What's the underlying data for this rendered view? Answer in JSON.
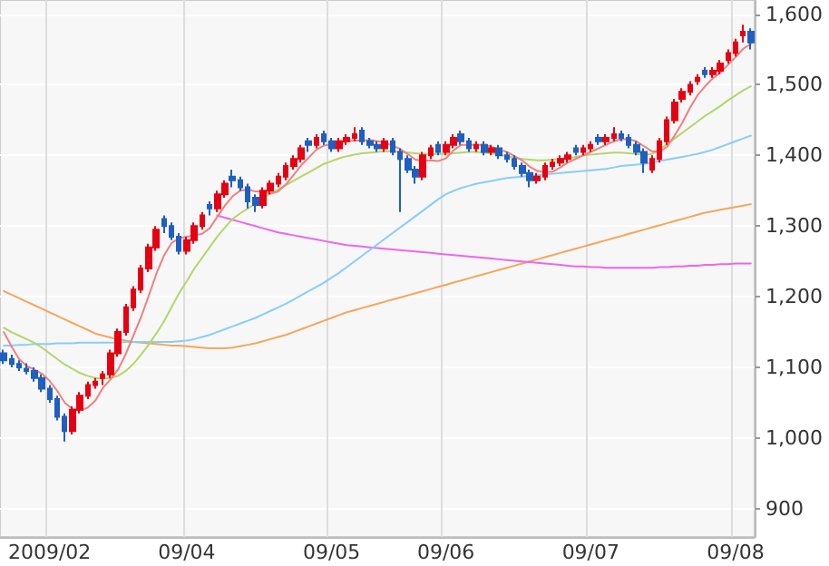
{
  "chart_data": {
    "type": "candlestick",
    "grid": true,
    "marker": "none",
    "categories": [
      null,
      null,
      null,
      null,
      null,
      null,
      "2009/02",
      null,
      null,
      null,
      null,
      null,
      null,
      null,
      null,
      null,
      null,
      null,
      null,
      null,
      null,
      null,
      null,
      null,
      "09/04",
      null,
      null,
      null,
      null,
      null,
      null,
      null,
      null,
      null,
      null,
      null,
      null,
      null,
      null,
      null,
      null,
      null,
      null,
      "09/05",
      null,
      null,
      null,
      null,
      null,
      null,
      null,
      null,
      null,
      null,
      null,
      null,
      null,
      null,
      "09/06",
      null,
      null,
      null,
      null,
      null,
      null,
      null,
      null,
      null,
      null,
      null,
      null,
      null,
      null,
      null,
      null,
      null,
      null,
      "09/07",
      null,
      null,
      null,
      null,
      null,
      null,
      null,
      null,
      null,
      null,
      null,
      null,
      null,
      null,
      null,
      null,
      null,
      null,
      "09/08",
      null,
      null
    ],
    "ylim": [
      860,
      1620
    ],
    "yticks": [
      {
        "value": 900,
        "label": "900"
      },
      {
        "value": 1000,
        "label": "1,000"
      },
      {
        "value": 1100,
        "label": "1,100"
      },
      {
        "value": 1200,
        "label": "1,200"
      },
      {
        "value": 1300,
        "label": "1,300"
      },
      {
        "value": 1400,
        "label": "1,400"
      },
      {
        "value": 1500,
        "label": "1,500"
      },
      {
        "value": 1600,
        "label": "1,600"
      }
    ],
    "series": [
      {
        "type": "line",
        "color": "#f5a65b",
        "values": [
          1208,
          1203,
          1198,
          1193,
          1188,
          1183,
          1178,
          1173,
          1168,
          1163,
          1158,
          1153,
          1148,
          1145,
          1142,
          1140,
          1138,
          1136,
          1135,
          1134,
          1133,
          1132,
          1131,
          1131,
          1130,
          1129,
          1128,
          1127,
          1127,
          1127,
          1128,
          1130,
          1132,
          1134,
          1137,
          1140,
          1143,
          1146,
          1150,
          1154,
          1158,
          1162,
          1166,
          1170,
          1174,
          1178,
          1181,
          1184,
          1187,
          1190,
          1193,
          1196,
          1199,
          1202,
          1205,
          1208,
          1211,
          1214,
          1217,
          1220,
          1223,
          1226,
          1229,
          1232,
          1235,
          1238,
          1241,
          1244,
          1247,
          1250,
          1253,
          1256,
          1259,
          1262,
          1265,
          1268,
          1271,
          1274,
          1277,
          1280,
          1283,
          1286,
          1289,
          1292,
          1295,
          1298,
          1301,
          1304,
          1307,
          1310,
          1313,
          1316,
          1319,
          1321,
          1323,
          1325,
          1327,
          1329,
          1331
        ]
      },
      {
        "type": "line",
        "color": "#ee66ee",
        "values": [
          null,
          null,
          null,
          null,
          null,
          null,
          null,
          null,
          null,
          null,
          null,
          null,
          null,
          null,
          null,
          null,
          null,
          null,
          null,
          null,
          null,
          null,
          null,
          null,
          null,
          null,
          null,
          null,
          1315,
          1312,
          1309,
          1306,
          1303,
          1300,
          1297,
          1294,
          1291,
          1289,
          1287,
          1285,
          1283,
          1281,
          1279,
          1277,
          1275,
          1273,
          1272,
          1271,
          1270,
          1269,
          1268,
          1267,
          1266,
          1265,
          1264,
          1263,
          1262,
          1261,
          1260,
          1259,
          1258,
          1257,
          1256,
          1255,
          1254,
          1253,
          1252,
          1251,
          1250,
          1249,
          1248,
          1247,
          1246,
          1245,
          1244,
          1243,
          1243,
          1242,
          1242,
          1241,
          1241,
          1241,
          1241,
          1241,
          1241,
          1241,
          1242,
          1242,
          1243,
          1243,
          1244,
          1244,
          1245,
          1245,
          1246,
          1246,
          1247,
          1247,
          1247
        ]
      },
      {
        "type": "line",
        "color": "#87cefa",
        "values": [
          1131,
          1131,
          1132,
          1132,
          1133,
          1133,
          1133,
          1134,
          1134,
          1134,
          1135,
          1135,
          1135,
          1135,
          1135,
          1135,
          1136,
          1136,
          1136,
          1136,
          1136,
          1136,
          1136,
          1137,
          1138,
          1140,
          1143,
          1146,
          1150,
          1154,
          1158,
          1162,
          1166,
          1170,
          1175,
          1180,
          1185,
          1190,
          1196,
          1202,
          1208,
          1214,
          1220,
          1227,
          1234,
          1242,
          1250,
          1258,
          1266,
          1274,
          1282,
          1290,
          1298,
          1306,
          1314,
          1322,
          1330,
          1338,
          1345,
          1350,
          1354,
          1357,
          1360,
          1362,
          1364,
          1366,
          1368,
          1369,
          1370,
          1371,
          1372,
          1373,
          1374,
          1375,
          1376,
          1377,
          1378,
          1379,
          1380,
          1381,
          1383,
          1385,
          1386,
          1387,
          1388,
          1390,
          1392,
          1394,
          1396,
          1398,
          1400,
          1402,
          1405,
          1408,
          1412,
          1416,
          1420,
          1424,
          1428
        ]
      },
      {
        "type": "line",
        "color": "#b5d56a",
        "values": [
          1156,
          1150,
          1145,
          1140,
          1135,
          1128,
          1120,
          1112,
          1104,
          1098,
          1092,
          1088,
          1085,
          1084,
          1085,
          1088,
          1095,
          1105,
          1118,
          1132,
          1148,
          1165,
          1185,
          1205,
          1222,
          1240,
          1255,
          1270,
          1285,
          1298,
          1310,
          1318,
          1325,
          1332,
          1340,
          1346,
          1352,
          1358,
          1364,
          1370,
          1376,
          1382,
          1388,
          1392,
          1396,
          1399,
          1401,
          1403,
          1404,
          1405,
          1406,
          1406,
          1405,
          1404,
          1403,
          1402,
          1402,
          1402,
          1402,
          1403,
          1404,
          1405,
          1405,
          1404,
          1403,
          1401,
          1399,
          1397,
          1395,
          1394,
          1393,
          1393,
          1394,
          1395,
          1396,
          1398,
          1400,
          1401,
          1402,
          1403,
          1404,
          1404,
          1403,
          1402,
          1401,
          1402,
          1408,
          1416,
          1424,
          1432,
          1440,
          1448,
          1456,
          1463,
          1470,
          1478,
          1485,
          1492,
          1498
        ]
      },
      {
        "type": "line",
        "color": "#f08080",
        "values": [
          1150,
          1130,
          1112,
          1102,
          1097,
          1091,
          1081,
          1067,
          1050,
          1041,
          1039,
          1043,
          1053,
          1071,
          1083,
          1097,
          1119,
          1145,
          1171,
          1201,
          1232,
          1258,
          1276,
          1283,
          1285,
          1287,
          1289,
          1297,
          1313,
          1329,
          1342,
          1350,
          1352,
          1349,
          1349,
          1346,
          1349,
          1359,
          1372,
          1386,
          1397,
          1408,
          1414,
          1416,
          1418,
          1420,
          1421,
          1421,
          1422,
          1420,
          1418,
          1414,
          1409,
          1402,
          1394,
          1392,
          1393,
          1392,
          1396,
          1407,
          1415,
          1415,
          1415,
          1415,
          1412,
          1408,
          1405,
          1399,
          1393,
          1384,
          1378,
          1376,
          1377,
          1383,
          1390,
          1395,
          1400,
          1405,
          1410,
          1415,
          1420,
          1423,
          1423,
          1420,
          1413,
          1406,
          1405,
          1412,
          1428,
          1446,
          1467,
          1485,
          1498,
          1509,
          1517,
          1528,
          1539,
          1551,
          1558
        ]
      },
      {
        "ohlc": [
          [
            1120,
            1125,
            1105,
            1110
          ],
          [
            1112,
            1118,
            1100,
            1105
          ],
          [
            1105,
            1110,
            1095,
            1100
          ],
          [
            1098,
            1106,
            1090,
            1095
          ],
          [
            1095,
            1100,
            1080,
            1085
          ],
          [
            1085,
            1090,
            1065,
            1070
          ],
          [
            1070,
            1075,
            1050,
            1055
          ],
          [
            1055,
            1060,
            1025,
            1030
          ],
          [
            1030,
            1035,
            995,
            1010
          ],
          [
            1010,
            1045,
            1005,
            1040
          ],
          [
            1040,
            1065,
            1035,
            1060
          ],
          [
            1060,
            1080,
            1055,
            1075
          ],
          [
            1075,
            1085,
            1070,
            1080
          ],
          [
            1085,
            1095,
            1075,
            1090
          ],
          [
            1090,
            1125,
            1085,
            1120
          ],
          [
            1120,
            1155,
            1115,
            1150
          ],
          [
            1150,
            1190,
            1145,
            1185
          ],
          [
            1185,
            1215,
            1180,
            1210
          ],
          [
            1210,
            1245,
            1205,
            1240
          ],
          [
            1240,
            1275,
            1235,
            1270
          ],
          [
            1270,
            1300,
            1265,
            1295
          ],
          [
            1310,
            1315,
            1290,
            1300
          ],
          [
            1300,
            1305,
            1280,
            1285
          ],
          [
            1285,
            1290,
            1260,
            1265
          ],
          [
            1265,
            1285,
            1260,
            1280
          ],
          [
            1280,
            1305,
            1275,
            1300
          ],
          [
            1300,
            1320,
            1295,
            1315
          ],
          [
            1330,
            1335,
            1315,
            1325
          ],
          [
            1325,
            1350,
            1320,
            1345
          ],
          [
            1345,
            1365,
            1340,
            1360
          ],
          [
            1370,
            1380,
            1355,
            1365
          ],
          [
            1365,
            1370,
            1350,
            1355
          ],
          [
            1355,
            1360,
            1325,
            1335
          ],
          [
            1340,
            1345,
            1320,
            1330
          ],
          [
            1330,
            1355,
            1325,
            1350
          ],
          [
            1350,
            1365,
            1345,
            1360
          ],
          [
            1360,
            1375,
            1355,
            1370
          ],
          [
            1370,
            1390,
            1365,
            1385
          ],
          [
            1385,
            1400,
            1380,
            1395
          ],
          [
            1395,
            1415,
            1390,
            1410
          ],
          [
            1420,
            1425,
            1405,
            1415
          ],
          [
            1415,
            1430,
            1410,
            1425
          ],
          [
            1430,
            1435,
            1415,
            1420
          ],
          [
            1420,
            1425,
            1405,
            1410
          ],
          [
            1410,
            1425,
            1405,
            1420
          ],
          [
            1420,
            1430,
            1415,
            1425
          ],
          [
            1425,
            1440,
            1420,
            1430
          ],
          [
            1435,
            1440,
            1415,
            1420
          ],
          [
            1420,
            1425,
            1410,
            1415
          ],
          [
            1415,
            1420,
            1405,
            1410
          ],
          [
            1410,
            1425,
            1405,
            1420
          ],
          [
            1420,
            1425,
            1400,
            1405
          ],
          [
            1405,
            1410,
            1320,
            1395
          ],
          [
            1395,
            1400,
            1375,
            1380
          ],
          [
            1380,
            1385,
            1360,
            1370
          ],
          [
            1370,
            1405,
            1365,
            1400
          ],
          [
            1400,
            1415,
            1395,
            1410
          ],
          [
            1415,
            1420,
            1400,
            1405
          ],
          [
            1405,
            1420,
            1400,
            1415
          ],
          [
            1415,
            1430,
            1410,
            1425
          ],
          [
            1430,
            1435,
            1415,
            1420
          ],
          [
            1420,
            1425,
            1405,
            1410
          ],
          [
            1410,
            1420,
            1405,
            1415
          ],
          [
            1415,
            1420,
            1400,
            1405
          ],
          [
            1405,
            1415,
            1400,
            1410
          ],
          [
            1410,
            1415,
            1395,
            1400
          ],
          [
            1400,
            1405,
            1390,
            1395
          ],
          [
            1395,
            1400,
            1380,
            1385
          ],
          [
            1385,
            1390,
            1370,
            1375
          ],
          [
            1375,
            1380,
            1355,
            1365
          ],
          [
            1365,
            1375,
            1360,
            1370
          ],
          [
            1370,
            1390,
            1365,
            1385
          ],
          [
            1385,
            1395,
            1380,
            1390
          ],
          [
            1390,
            1400,
            1385,
            1395
          ],
          [
            1395,
            1405,
            1390,
            1400
          ],
          [
            1410,
            1415,
            1400,
            1405
          ],
          [
            1405,
            1415,
            1400,
            1410
          ],
          [
            1410,
            1420,
            1405,
            1415
          ],
          [
            1425,
            1430,
            1415,
            1420
          ],
          [
            1420,
            1430,
            1415,
            1425
          ],
          [
            1425,
            1440,
            1420,
            1430
          ],
          [
            1430,
            1435,
            1420,
            1425
          ],
          [
            1425,
            1430,
            1410,
            1415
          ],
          [
            1415,
            1420,
            1400,
            1405
          ],
          [
            1405,
            1410,
            1375,
            1390
          ],
          [
            1380,
            1400,
            1375,
            1395
          ],
          [
            1395,
            1425,
            1390,
            1420
          ],
          [
            1420,
            1455,
            1415,
            1450
          ],
          [
            1450,
            1480,
            1445,
            1475
          ],
          [
            1480,
            1495,
            1475,
            1490
          ],
          [
            1490,
            1505,
            1485,
            1500
          ],
          [
            1505,
            1515,
            1500,
            1510
          ],
          [
            1520,
            1525,
            1510,
            1515
          ],
          [
            1515,
            1525,
            1510,
            1520
          ],
          [
            1520,
            1535,
            1515,
            1530
          ],
          [
            1535,
            1550,
            1530,
            1545
          ],
          [
            1545,
            1565,
            1540,
            1560
          ],
          [
            1570,
            1585,
            1560,
            1575
          ],
          [
            1575,
            1580,
            1550,
            1560
          ]
        ],
        "colors": [
          "#1f5fbf",
          "#1f5fbf",
          "#1f5fbf",
          "#1f5fbf",
          "#1f5fbf",
          "#1f5fbf",
          "#1f5fbf",
          "#1f5fbf",
          "#1f5fbf",
          "#e60012",
          "#e60012",
          "#e60012",
          "#e60012",
          "#e60012",
          "#e60012",
          "#e60012",
          "#e60012",
          "#e60012",
          "#e60012",
          "#e60012",
          "#e60012",
          "#1f5fbf",
          "#1f5fbf",
          "#1f5fbf",
          "#e60012",
          "#e60012",
          "#e60012",
          "#1f5fbf",
          "#e60012",
          "#e60012",
          "#1f5fbf",
          "#1f5fbf",
          "#1f5fbf",
          "#1f5fbf",
          "#e60012",
          "#e60012",
          "#e60012",
          "#e60012",
          "#e60012",
          "#e60012",
          "#1f5fbf",
          "#e60012",
          "#1f5fbf",
          "#1f5fbf",
          "#e60012",
          "#e60012",
          "#e60012",
          "#1f5fbf",
          "#1f5fbf",
          "#1f5fbf",
          "#e60012",
          "#1f5fbf",
          "#1f5fbf",
          "#1f5fbf",
          "#1f5fbf",
          "#e60012",
          "#e60012",
          "#1f5fbf",
          "#e60012",
          "#e60012",
          "#1f5fbf",
          "#1f5fbf",
          "#e60012",
          "#1f5fbf",
          "#e60012",
          "#1f5fbf",
          "#1f5fbf",
          "#1f5fbf",
          "#1f5fbf",
          "#1f5fbf",
          "#e60012",
          "#e60012",
          "#e60012",
          "#e60012",
          "#e60012",
          "#1f5fbf",
          "#e60012",
          "#e60012",
          "#1f5fbf",
          "#e60012",
          "#e60012",
          "#1f5fbf",
          "#1f5fbf",
          "#1f5fbf",
          "#1f5fbf",
          "#e60012",
          "#e60012",
          "#e60012",
          "#e60012",
          "#e60012",
          "#e60012",
          "#e60012",
          "#1f5fbf",
          "#e60012",
          "#e60012",
          "#e60012",
          "#e60012",
          "#e60012",
          "#1f5fbf"
        ]
      }
    ]
  }
}
